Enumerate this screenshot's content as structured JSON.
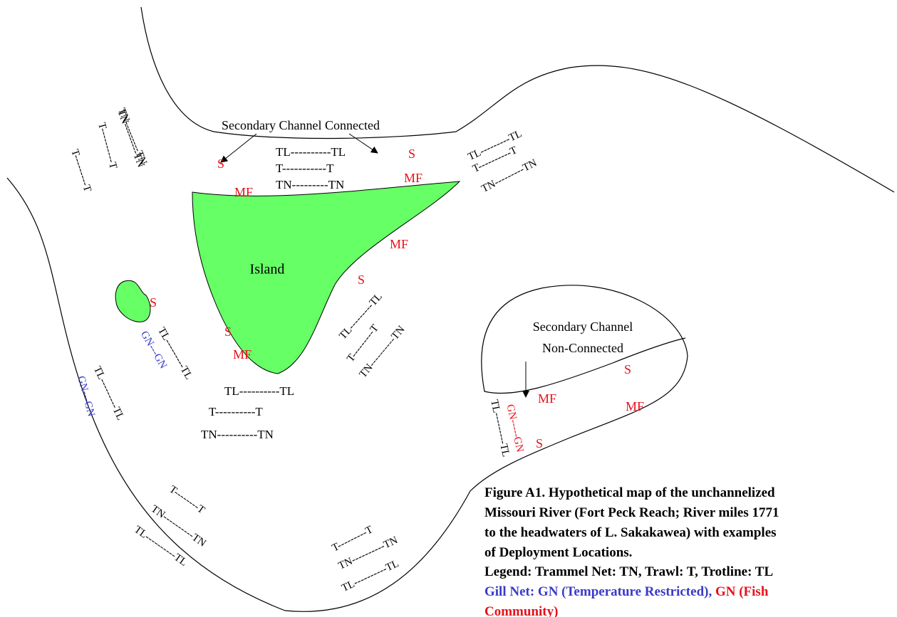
{
  "island_label": "Island",
  "connected_label": "Secondary Channel Connected",
  "non_connected_label": [
    "Secondary Channel",
    "Non-Connected"
  ],
  "horizontal_deployments": [
    "TL----------TL",
    "T-----------T",
    "TN---------TN",
    "TL----------TL",
    "T----------T",
    "TN----------TN"
  ],
  "habitat_labels": [
    "S",
    "S",
    "MF",
    "MF",
    "MF",
    "S",
    "S",
    "S",
    "MF",
    "MF",
    "S",
    "MF",
    "S"
  ],
  "angled_deployments": [
    {
      "text": "TN---------TN",
      "color": "#000000"
    },
    {
      "text": "T----------T",
      "color": "#000000"
    },
    {
      "text": "TN---------TN",
      "color": "#000000"
    },
    {
      "text": "T---------T",
      "color": "#000000"
    },
    {
      "text": "TL---------TL",
      "color": "#000000"
    },
    {
      "text": "T----------T",
      "color": "#000000"
    },
    {
      "text": "TN---------TN",
      "color": "#000000"
    },
    {
      "text": "TL---------TL",
      "color": "#000000"
    },
    {
      "text": "T---------T",
      "color": "#000000"
    },
    {
      "text": "TN----------TN",
      "color": "#000000"
    },
    {
      "text": "GN---GN",
      "color": "#3a3ac8"
    },
    {
      "text": "TL---------TL",
      "color": "#000000"
    },
    {
      "text": "TL---------TL",
      "color": "#000000"
    },
    {
      "text": "GN---GN",
      "color": "#3a3ac8"
    },
    {
      "text": "TL---------TL",
      "color": "#000000"
    },
    {
      "text": "GN-----GN",
      "color": "#e8101a"
    },
    {
      "text": "T--------T",
      "color": "#000000"
    },
    {
      "text": "TN----------TN",
      "color": "#000000"
    },
    {
      "text": "TL----------TL",
      "color": "#000000"
    },
    {
      "text": "T---------T",
      "color": "#000000"
    },
    {
      "text": "TN----------TN",
      "color": "#000000"
    },
    {
      "text": "TL----------TL",
      "color": "#000000"
    }
  ],
  "caption": {
    "lines": [
      "Figure A1.  Hypothetical map of the unchannelized",
      "Missouri River (Fort Peck Reach; River miles 1771",
      "to the headwaters of L. Sakakawea) with examples",
      "of Deployment Locations.",
      "Legend:  Trammel Net: TN,   Trawl: T, Trotline: TL"
    ],
    "gill_temperature": "Gill Net: GN (Temperature Restricted),",
    "gill_fish_community": [
      " GN (Fish",
      "Community)"
    ]
  }
}
